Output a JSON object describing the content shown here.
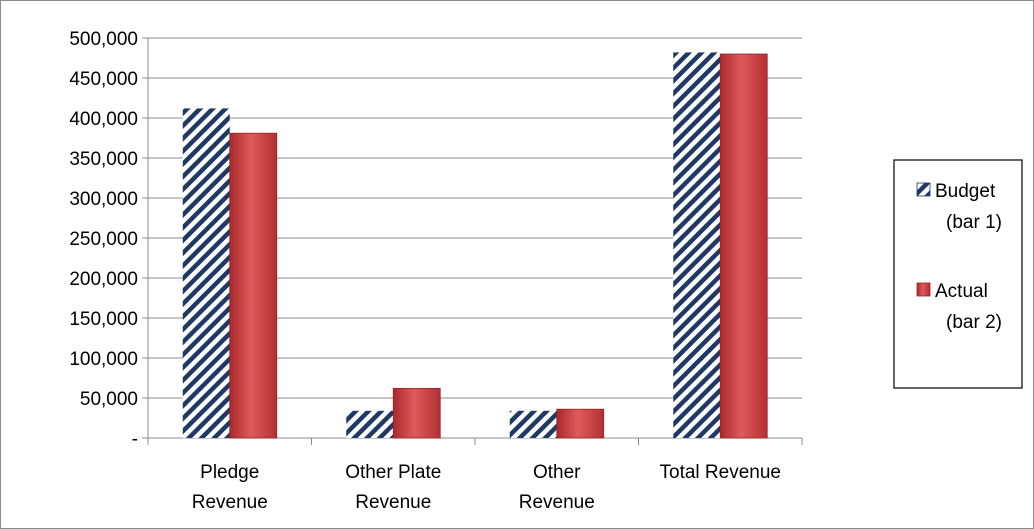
{
  "chart_data": {
    "type": "bar",
    "categories": [
      [
        "Pledge",
        "Revenue"
      ],
      [
        "Other Plate",
        "Revenue"
      ],
      [
        "Other",
        "Revenue"
      ],
      [
        "Total Revenue"
      ]
    ],
    "series": [
      {
        "name": [
          "Budget",
          "(bar 1)"
        ],
        "values": [
          412000,
          34000,
          34000,
          482000
        ],
        "color": "#1f3864",
        "pattern": "diagonal-stripes"
      },
      {
        "name": [
          "Actual",
          "(bar 2)"
        ],
        "values": [
          381000,
          62000,
          36000,
          480000
        ],
        "color": "#c0383a",
        "pattern": "gradient"
      }
    ],
    "yticks": [
      0,
      50000,
      100000,
      150000,
      200000,
      250000,
      300000,
      350000,
      400000,
      450000,
      500000
    ],
    "ytick_labels": [
      "-",
      "50,000",
      "100,000",
      "150,000",
      "200,000",
      "250,000",
      "300,000",
      "350,000",
      "400,000",
      "450,000",
      "500,000"
    ],
    "ylim": [
      0,
      500000
    ],
    "grid": true,
    "legend_position": "right",
    "title": "",
    "xlabel": "",
    "ylabel": ""
  }
}
